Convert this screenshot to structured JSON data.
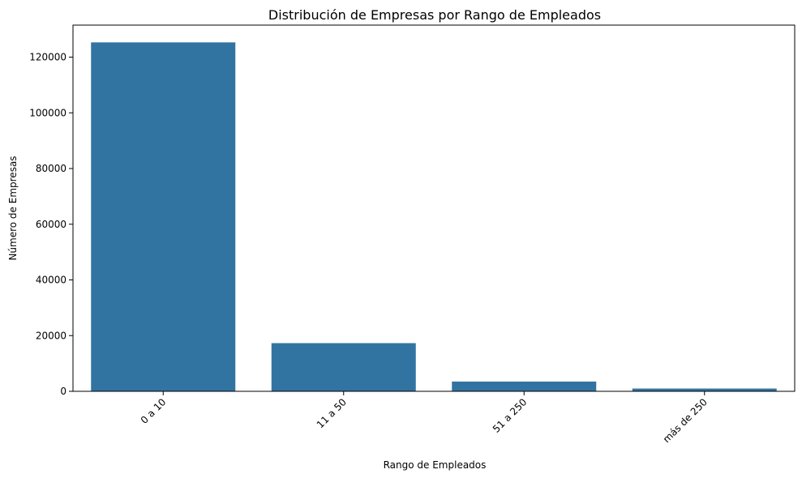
{
  "chart_data": {
    "type": "bar",
    "title": "Distribución de Empresas por Rango de Empleados",
    "xlabel": "Rango de Empleados",
    "ylabel": "Número de Empresas",
    "categories": [
      "0 a 10",
      "11 a 50",
      "51 a 250",
      "más de 250"
    ],
    "values": [
      125300,
      17300,
      3500,
      1000
    ],
    "ylim": [
      0,
      131500
    ],
    "yticks": [
      0,
      20000,
      40000,
      60000,
      80000,
      100000,
      120000
    ],
    "ytick_labels": [
      "0",
      "20000",
      "40000",
      "60000",
      "80000",
      "100000",
      "120000"
    ],
    "bar_color": "#3274a1",
    "grid": false,
    "legend": "none",
    "xtick_rotation": "45 degrees, right-aligned"
  }
}
